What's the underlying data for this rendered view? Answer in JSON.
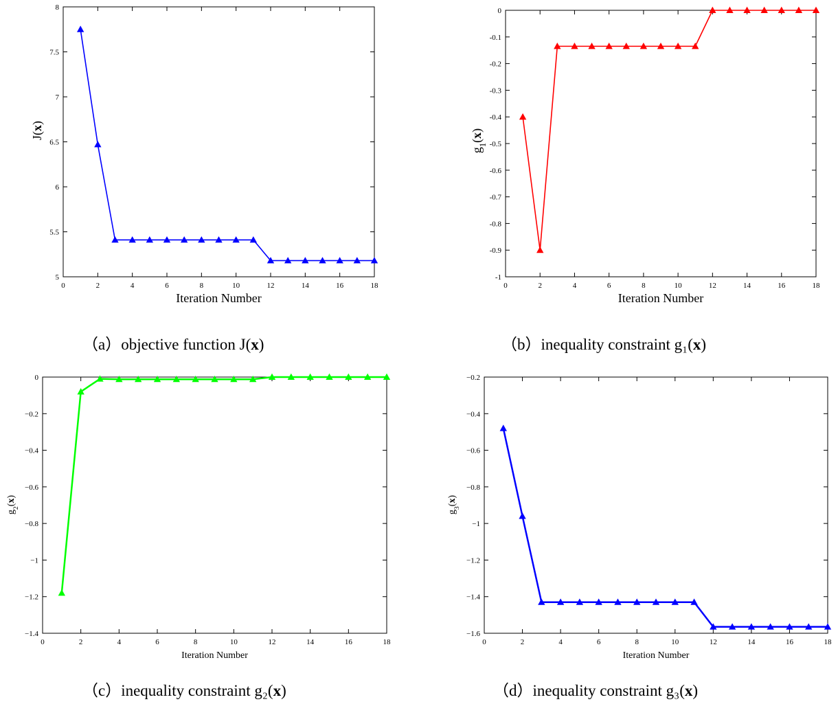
{
  "charts": [
    {
      "caption": {
        "prefix": "（a）objective function J(",
        "var": "x",
        "suffix": ")"
      },
      "chart_data": {
        "type": "line",
        "title": "",
        "xlabel": "Iteration Number",
        "ylabel_main": "J",
        "ylabel_sub": "",
        "ylabel_var": "x",
        "xlim": [
          0,
          18
        ],
        "ylim": [
          5,
          8
        ],
        "xticks": [
          0,
          2,
          4,
          6,
          8,
          10,
          12,
          14,
          16,
          18
        ],
        "yticks": [
          5,
          5.5,
          6,
          6.5,
          7,
          7.5,
          8
        ],
        "ytick_labels": [
          "5",
          "5.5",
          "6",
          "6.5",
          "7",
          "7.5",
          "8"
        ],
        "marker": "triangle",
        "color": "#0000ff",
        "grid": false,
        "series": [
          {
            "x": [
              1,
              2,
              3,
              4,
              5,
              6,
              7,
              8,
              9,
              10,
              11,
              12,
              13,
              14,
              15,
              16,
              17,
              18
            ],
            "y": [
              7.75,
              6.47,
              5.41,
              5.41,
              5.41,
              5.41,
              5.41,
              5.41,
              5.41,
              5.41,
              5.41,
              5.18,
              5.18,
              5.18,
              5.18,
              5.18,
              5.18,
              5.18
            ]
          }
        ]
      }
    },
    {
      "caption": {
        "prefix": "（b）inequality constraint  g₁(",
        "var": "x",
        "suffix": ")"
      },
      "chart_data": {
        "type": "line",
        "title": "",
        "xlabel": "Iteration Number",
        "ylabel_main": "g",
        "ylabel_sub": "1",
        "ylabel_var": "x",
        "xlim": [
          0,
          18
        ],
        "ylim": [
          -1,
          0
        ],
        "xticks": [
          0,
          2,
          4,
          6,
          8,
          10,
          12,
          14,
          16,
          18
        ],
        "yticks": [
          -1,
          -0.9,
          -0.8,
          -0.7,
          -0.6,
          -0.5,
          -0.4,
          -0.3,
          -0.2,
          -0.1,
          0
        ],
        "ytick_labels": [
          "-1",
          "-0.9",
          "-0.8",
          "-0.7",
          "-0.6",
          "-0.5",
          "-0.4",
          "-0.3",
          "-0.2",
          "-0.1",
          "0"
        ],
        "marker": "triangle",
        "color": "#ff0000",
        "grid": false,
        "series": [
          {
            "x": [
              1,
              2,
              3,
              4,
              5,
              6,
              7,
              8,
              9,
              10,
              11,
              12,
              13,
              14,
              15,
              16,
              17,
              18
            ],
            "y": [
              -0.4,
              -0.9,
              -0.135,
              -0.135,
              -0.135,
              -0.135,
              -0.135,
              -0.135,
              -0.135,
              -0.135,
              -0.135,
              0,
              0,
              0,
              0,
              0,
              0,
              0
            ]
          }
        ]
      }
    },
    {
      "caption": {
        "prefix": "（c）inequality constraint g₂(",
        "var": "x",
        "suffix": ")"
      },
      "chart_data": {
        "type": "line",
        "title": "",
        "xlabel": "Iteration Number",
        "ylabel_main": "g",
        "ylabel_sub": "2",
        "ylabel_var": "x",
        "xlim": [
          0,
          18
        ],
        "ylim": [
          -1.4,
          0
        ],
        "xticks": [
          0,
          2,
          4,
          6,
          8,
          10,
          12,
          14,
          16,
          18
        ],
        "yticks": [
          -1.4,
          -1.2,
          -1,
          -0.8,
          -0.6,
          -0.4,
          -0.2,
          0
        ],
        "ytick_labels": [
          "−1.4",
          "−1.2",
          "−1",
          "−0.8",
          "−0.6",
          "−0.4",
          "−0.2",
          "0"
        ],
        "marker": "triangle",
        "color": "#00ff00",
        "grid": false,
        "series": [
          {
            "x": [
              1,
              2,
              3,
              4,
              5,
              6,
              7,
              8,
              9,
              10,
              11,
              12,
              13,
              14,
              15,
              16,
              17,
              18
            ],
            "y": [
              -1.18,
              -0.08,
              -0.01,
              -0.012,
              -0.012,
              -0.012,
              -0.012,
              -0.012,
              -0.012,
              -0.012,
              -0.012,
              0,
              0,
              0,
              0,
              0,
              0,
              0
            ]
          }
        ]
      }
    },
    {
      "caption": {
        "prefix": "（d）inequality constraint g₃(",
        "var": "x",
        "suffix": ")"
      },
      "chart_data": {
        "type": "line",
        "title": "",
        "xlabel": "Iteration Number",
        "ylabel_main": "g",
        "ylabel_sub": "3",
        "ylabel_var": "x",
        "xlim": [
          0,
          18
        ],
        "ylim": [
          -1.6,
          -0.2
        ],
        "xticks": [
          0,
          2,
          4,
          6,
          8,
          10,
          12,
          14,
          16,
          18
        ],
        "yticks": [
          -1.6,
          -1.4,
          -1.2,
          -1,
          -0.8,
          -0.6,
          -0.4,
          -0.2
        ],
        "ytick_labels": [
          "−1.6",
          "−1.4",
          "−1.2",
          "−1",
          "−0.8",
          "−0.6",
          "−0.4",
          "−0.2"
        ],
        "marker": "triangle",
        "color": "#0000ff",
        "grid": false,
        "series": [
          {
            "x": [
              1,
              2,
              3,
              4,
              5,
              6,
              7,
              8,
              9,
              10,
              11,
              12,
              13,
              14,
              15,
              16,
              17,
              18
            ],
            "y": [
              -0.48,
              -0.96,
              -1.43,
              -1.43,
              -1.43,
              -1.43,
              -1.43,
              -1.43,
              -1.43,
              -1.43,
              -1.43,
              -1.565,
              -1.565,
              -1.565,
              -1.565,
              -1.565,
              -1.565,
              -1.565
            ]
          }
        ]
      }
    }
  ]
}
